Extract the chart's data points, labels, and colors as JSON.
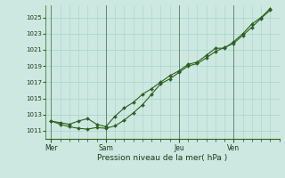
{
  "bg_color": "#cce8e0",
  "grid_color": "#a8d4cc",
  "line_color": "#2d6020",
  "marker_color": "#2d6020",
  "axis_label_color": "#1a3a1a",
  "xlabel": "Pression niveau de la mer( hPa )",
  "ylim": [
    1010.0,
    1026.5
  ],
  "yticks": [
    1011,
    1013,
    1015,
    1017,
    1019,
    1021,
    1023,
    1025
  ],
  "day_labels": [
    "Mer",
    "Sam",
    "Jeu",
    "Ven"
  ],
  "day_positions": [
    0,
    3,
    7,
    10
  ],
  "line1_x": [
    0,
    0.5,
    1.0,
    1.5,
    2.0,
    2.5,
    3.0,
    3.5,
    4.0,
    4.5,
    5.0,
    5.5,
    6.0,
    6.5,
    7.0,
    7.5,
    8.0,
    8.5,
    9.0,
    9.5,
    10.0,
    10.5,
    11.0,
    11.5,
    12.0
  ],
  "line1_y": [
    1012.2,
    1011.8,
    1011.5,
    1011.3,
    1011.2,
    1011.4,
    1011.3,
    1011.6,
    1012.3,
    1013.2,
    1014.2,
    1015.5,
    1016.8,
    1017.4,
    1018.2,
    1019.0,
    1019.3,
    1020.0,
    1020.8,
    1021.3,
    1021.8,
    1022.8,
    1023.8,
    1024.9,
    1025.9
  ],
  "line2_x": [
    0,
    0.5,
    1.0,
    1.5,
    2.0,
    2.5,
    3.0,
    3.5,
    4.0,
    4.5,
    5.0,
    5.5,
    6.0,
    6.5,
    7.0,
    7.5,
    8.0,
    8.5,
    9.0,
    9.5,
    10.0,
    10.5,
    11.0,
    11.5,
    12.0
  ],
  "line2_y": [
    1012.2,
    1012.0,
    1011.8,
    1012.2,
    1012.5,
    1011.8,
    1011.5,
    1012.8,
    1013.8,
    1014.5,
    1015.5,
    1016.2,
    1017.0,
    1017.8,
    1018.4,
    1019.2,
    1019.5,
    1020.3,
    1021.2,
    1021.2,
    1022.0,
    1023.0,
    1024.2,
    1025.0,
    1026.1
  ],
  "vline_positions": [
    0,
    3,
    7,
    10
  ],
  "figsize": [
    3.2,
    2.0
  ],
  "dpi": 100
}
